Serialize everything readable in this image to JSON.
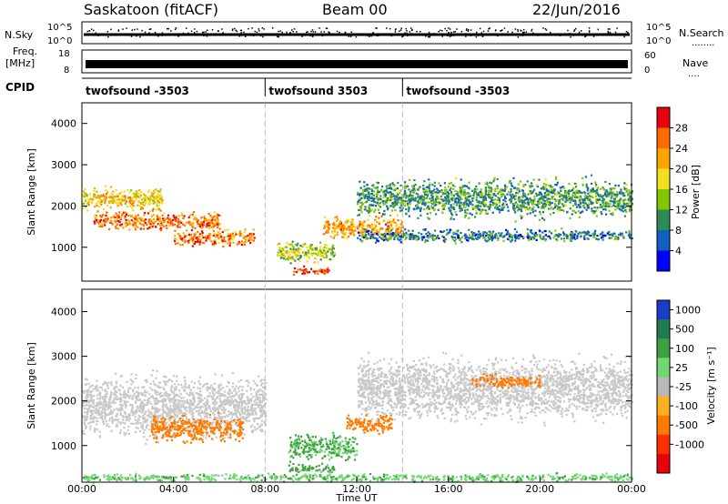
{
  "header": {
    "station": "Saskatoon (fitACF)",
    "beam": "Beam 00",
    "date": "22/Jun/2016"
  },
  "top_panels": {
    "nsky": {
      "label": "N.Sky",
      "ticks": [
        "10^5",
        "10^0"
      ],
      "right_ticks": [
        "10^5",
        "10^0"
      ],
      "right_label": "N.Search",
      "right_dots": "........"
    },
    "freq": {
      "label_line1": "Freq.",
      "label_line2": "[MHz]",
      "ticks": [
        "18",
        "8"
      ],
      "right_ticks": [
        "60",
        "0"
      ],
      "right_label": "Nave",
      "right_dots": "...."
    },
    "cpid": {
      "label": "CPID",
      "segments": [
        {
          "name": "twofsound -3503",
          "start_hour": 0
        },
        {
          "name": "twofsound 3503",
          "start_hour": 8
        },
        {
          "name": "twofsound -3503",
          "start_hour": 14
        }
      ]
    }
  },
  "power_panel": {
    "ylabel": "Slant Range [km]",
    "yticks": [
      "4000",
      "3000",
      "2000",
      "1000"
    ],
    "colorbar_label": "Power [dB]",
    "colorbar_ticks": [
      "28",
      "24",
      "20",
      "16",
      "12",
      "8",
      "4"
    ],
    "colorbar_colors": [
      "#e8000b",
      "#ff6a00",
      "#ffa500",
      "#f0e020",
      "#82c800",
      "#2e8b57",
      "#1060c0",
      "#0000ff"
    ]
  },
  "velocity_panel": {
    "ylabel": "Slant Range [km]",
    "yticks": [
      "4000",
      "3000",
      "2000",
      "1000"
    ],
    "colorbar_label": "Velocity [m s⁻¹]",
    "colorbar_ticks": [
      "1000",
      "500",
      "100",
      "25",
      "-25",
      "-100",
      "-500",
      "-1000"
    ],
    "colorbar_colors": [
      "#1a3cc8",
      "#1f7c50",
      "#3da040",
      "#6fd86f",
      "#b8b8b8",
      "#ffb020",
      "#ff7a00",
      "#ff3000",
      "#e8000b"
    ],
    "ground_scatter_color": "#c8c8c8"
  },
  "x_axis": {
    "xlabel": "Time UT",
    "ticks": [
      "00:00",
      "04:00",
      "08:00",
      "12:00",
      "16:00",
      "20:00",
      "00:00"
    ]
  },
  "chart_data": {
    "type": "heatmap",
    "title": "Saskatoon (fitACF) Beam 00 22/Jun/2016",
    "xlabel": "Time UT",
    "ylabel": "Slant Range [km]",
    "xlim_hours": [
      0,
      24
    ],
    "ylim_km": [
      180,
      4500
    ],
    "x_ticks_hours": [
      0,
      4,
      8,
      12,
      16,
      20,
      24
    ],
    "y_ticks_km": [
      1000,
      2000,
      3000,
      4000
    ],
    "power_range_db": [
      3,
      30
    ],
    "velocity_range_ms": [
      -1000,
      1000
    ],
    "power_features": [
      {
        "t_start": 0.0,
        "t_end": 3.5,
        "r_center_km": 2200,
        "r_width_km": 350,
        "db": 20
      },
      {
        "t_start": 0.5,
        "t_end": 6.0,
        "r_center_km": 1650,
        "r_width_km": 300,
        "db": 24
      },
      {
        "t_start": 4.0,
        "t_end": 7.5,
        "r_center_km": 1250,
        "r_width_km": 250,
        "db": 24
      },
      {
        "t_start": 8.5,
        "t_end": 11.0,
        "r_center_km": 900,
        "r_width_km": 350,
        "db": 16
      },
      {
        "t_start": 9.2,
        "t_end": 10.8,
        "r_center_km": 450,
        "r_width_km": 120,
        "db": 28
      },
      {
        "t_start": 10.5,
        "t_end": 14.0,
        "r_center_km": 1500,
        "r_width_km": 350,
        "db": 22
      },
      {
        "t_start": 12.0,
        "t_end": 24.0,
        "r_center_km": 2200,
        "r_width_km": 600,
        "db": 12
      },
      {
        "t_start": 12.0,
        "t_end": 24.0,
        "r_center_km": 1300,
        "r_width_km": 200,
        "db": 10
      }
    ],
    "velocity_features": [
      {
        "t_start": 0.0,
        "t_end": 8.0,
        "r_center_km": 1900,
        "r_width_km": 900,
        "ms": 0,
        "ground_scatter": true
      },
      {
        "t_start": 3.0,
        "t_end": 7.0,
        "r_center_km": 1400,
        "r_width_km": 400,
        "ms": -200
      },
      {
        "t_start": 9.0,
        "t_end": 12.0,
        "r_center_km": 1000,
        "r_width_km": 400,
        "ms": 120
      },
      {
        "t_start": 9.0,
        "t_end": 11.0,
        "r_center_km": 500,
        "r_width_km": 150,
        "ms": 150
      },
      {
        "t_start": 11.5,
        "t_end": 13.5,
        "r_center_km": 1500,
        "r_width_km": 300,
        "ms": -250
      },
      {
        "t_start": 12.0,
        "t_end": 24.0,
        "r_center_km": 2300,
        "r_width_km": 900,
        "ms": 0,
        "ground_scatter": true
      },
      {
        "t_start": 17.0,
        "t_end": 20.0,
        "r_center_km": 2450,
        "r_width_km": 200,
        "ms": -200
      },
      {
        "t_start": 0.0,
        "t_end": 24.0,
        "r_center_km": 300,
        "r_width_km": 120,
        "ms": 80
      }
    ],
    "cpid_boundaries_hours": [
      8,
      14
    ]
  }
}
